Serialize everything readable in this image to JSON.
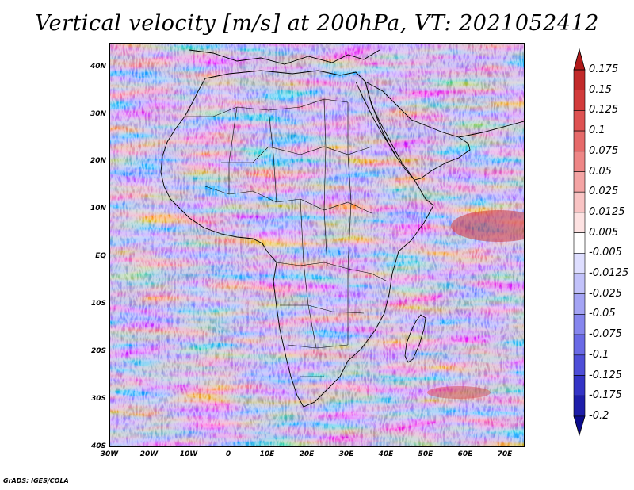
{
  "title": "Vertical velocity [m/s] at 200hPa, VT: 2021052412",
  "credit": "GrADS: IGES/COLA",
  "map": {
    "lat_labels": [
      "40N",
      "30N",
      "20N",
      "10N",
      "EQ",
      "10S",
      "20S",
      "30S",
      "40S"
    ],
    "lon_labels": [
      "30W",
      "20W",
      "10W",
      "0",
      "10E",
      "20E",
      "30E",
      "40E",
      "50E",
      "60E",
      "70E"
    ],
    "lat_values": [
      40,
      30,
      20,
      10,
      0,
      -10,
      -20,
      -30,
      -40
    ],
    "lon_values": [
      -30,
      -20,
      -10,
      0,
      10,
      20,
      30,
      40,
      50,
      60,
      70
    ],
    "lon_range": [
      -30,
      75
    ],
    "lat_range": [
      -40,
      45
    ]
  },
  "colorbar": {
    "labels": [
      "0.175",
      "0.15",
      "0.125",
      "0.1",
      "0.075",
      "0.05",
      "0.025",
      "0.0125",
      "0.005",
      "-0.005",
      "-0.0125",
      "-0.025",
      "-0.05",
      "-0.075",
      "-0.1",
      "-0.125",
      "-0.175",
      "-0.2"
    ],
    "colors": [
      "#b01a1a",
      "#c22a2a",
      "#d23b3b",
      "#de5252",
      "#e66a6a",
      "#ee8686",
      "#f4a4a4",
      "#f9c4c4",
      "#fde2e2",
      "#ffffff",
      "#dedeff",
      "#c2c2fa",
      "#a4a4f4",
      "#8686ee",
      "#6a6ae6",
      "#4e4ed8",
      "#3434c6",
      "#1e1eaa",
      "#0c0c8c"
    ]
  }
}
